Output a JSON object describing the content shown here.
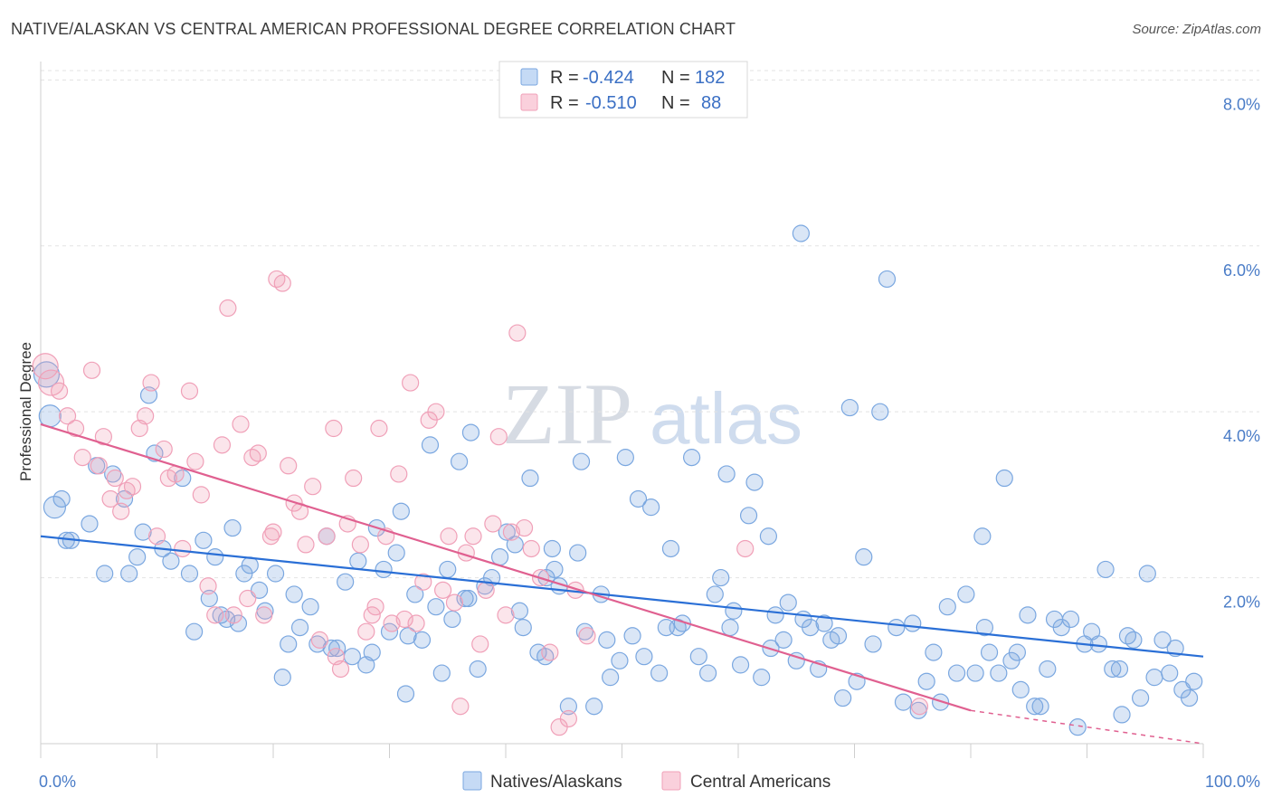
{
  "header": {
    "title": "NATIVE/ALASKAN VS CENTRAL AMERICAN PROFESSIONAL DEGREE CORRELATION CHART",
    "source": "Source: ZipAtlas.com"
  },
  "watermark": {
    "zip": "ZIP",
    "atlas": "atlas"
  },
  "legend": {
    "rows": [
      {
        "r_label": "R =",
        "r_value": "-0.424",
        "n_label": "N =",
        "n_value": "182",
        "color": "#7aa7e0"
      },
      {
        "r_label": "R =",
        "r_value": "-0.510",
        "n_label": "N =",
        "n_value": "88",
        "color": "#f0a0b8"
      }
    ]
  },
  "bottom_legend": {
    "items": [
      {
        "label": "Natives/Alaskans",
        "color": "#7aa7e0"
      },
      {
        "label": "Central Americans",
        "color": "#f0a0b8"
      }
    ]
  },
  "chart_data": {
    "type": "scatter",
    "ylabel": "Professional Degree",
    "x_tick_labels": {
      "left": "0.0%",
      "right": "100.0%"
    },
    "y_tick_labels": [
      "2.0%",
      "4.0%",
      "6.0%",
      "8.0%"
    ],
    "y_ticks": [
      2,
      4,
      6,
      8
    ],
    "xlim": [
      0,
      100
    ],
    "ylim": [
      0,
      8.2
    ],
    "grid": "horizontal dashed",
    "colors": {
      "blue": "#7aa7e0",
      "blue_line": "#2a6fd6",
      "pink": "#f0a0b8",
      "pink_line": "#e06090"
    },
    "trendlines": [
      {
        "series": "Natives/Alaskans",
        "x": [
          0,
          100
        ],
        "y": [
          2.5,
          1.05
        ]
      },
      {
        "series": "Central Americans",
        "x": [
          0,
          80
        ],
        "y": [
          3.85,
          0.4
        ],
        "dashed_extension_to": [
          100,
          0.0
        ]
      }
    ],
    "series": [
      {
        "name": "Natives/Alaskans",
        "color": "#7aa7e0",
        "points": [
          [
            0.5,
            4.45
          ],
          [
            0.8,
            3.95
          ],
          [
            1.2,
            2.85
          ],
          [
            1.8,
            2.95
          ],
          [
            2.2,
            2.45
          ],
          [
            2.6,
            2.45
          ],
          [
            4.2,
            2.65
          ],
          [
            4.8,
            3.35
          ],
          [
            6.2,
            3.25
          ],
          [
            5.5,
            2.05
          ],
          [
            7.2,
            2.95
          ],
          [
            7.6,
            2.05
          ],
          [
            8.3,
            2.25
          ],
          [
            8.8,
            2.55
          ],
          [
            9.3,
            4.2
          ],
          [
            9.8,
            3.5
          ],
          [
            10.5,
            2.35
          ],
          [
            11.2,
            2.2
          ],
          [
            12.2,
            3.2
          ],
          [
            12.8,
            2.05
          ],
          [
            13.2,
            1.35
          ],
          [
            14.0,
            2.45
          ],
          [
            14.5,
            1.75
          ],
          [
            15.0,
            2.25
          ],
          [
            15.5,
            1.55
          ],
          [
            16.0,
            1.5
          ],
          [
            16.5,
            2.6
          ],
          [
            17.0,
            1.45
          ],
          [
            17.5,
            2.05
          ],
          [
            18.0,
            2.15
          ],
          [
            18.8,
            1.85
          ],
          [
            19.3,
            1.6
          ],
          [
            20.2,
            2.05
          ],
          [
            20.8,
            0.8
          ],
          [
            21.3,
            1.2
          ],
          [
            21.8,
            1.8
          ],
          [
            22.3,
            1.4
          ],
          [
            23.2,
            1.65
          ],
          [
            23.8,
            1.2
          ],
          [
            24.6,
            2.5
          ],
          [
            25.0,
            1.15
          ],
          [
            25.5,
            1.15
          ],
          [
            26.2,
            1.95
          ],
          [
            26.8,
            1.05
          ],
          [
            27.3,
            2.2
          ],
          [
            28.0,
            0.95
          ],
          [
            28.5,
            1.1
          ],
          [
            28.9,
            2.6
          ],
          [
            29.5,
            2.1
          ],
          [
            30.0,
            1.35
          ],
          [
            30.6,
            2.3
          ],
          [
            31.0,
            2.8
          ],
          [
            31.6,
            1.3
          ],
          [
            32.2,
            1.8
          ],
          [
            32.8,
            1.25
          ],
          [
            33.5,
            3.6
          ],
          [
            34.0,
            1.65
          ],
          [
            34.5,
            0.85
          ],
          [
            35.0,
            2.1
          ],
          [
            35.4,
            1.5
          ],
          [
            36.0,
            3.4
          ],
          [
            36.5,
            1.75
          ],
          [
            37.0,
            3.75
          ],
          [
            37.6,
            0.9
          ],
          [
            38.2,
            1.9
          ],
          [
            38.8,
            2.0
          ],
          [
            39.5,
            2.25
          ],
          [
            40.1,
            2.55
          ],
          [
            40.8,
            2.4
          ],
          [
            41.5,
            1.4
          ],
          [
            42.1,
            3.2
          ],
          [
            42.8,
            1.1
          ],
          [
            43.5,
            2.0
          ],
          [
            44.0,
            2.35
          ],
          [
            44.6,
            1.9
          ],
          [
            45.4,
            0.45
          ],
          [
            46.2,
            2.3
          ],
          [
            46.8,
            1.35
          ],
          [
            47.6,
            0.45
          ],
          [
            48.2,
            1.8
          ],
          [
            49.0,
            0.8
          ],
          [
            49.8,
            1.0
          ],
          [
            50.3,
            3.45
          ],
          [
            50.9,
            1.3
          ],
          [
            51.4,
            2.95
          ],
          [
            51.9,
            1.05
          ],
          [
            52.5,
            2.85
          ],
          [
            53.2,
            0.85
          ],
          [
            53.8,
            1.4
          ],
          [
            54.2,
            2.35
          ],
          [
            54.8,
            1.4
          ],
          [
            55.2,
            1.45
          ],
          [
            56.0,
            3.45
          ],
          [
            56.6,
            1.05
          ],
          [
            57.4,
            0.85
          ],
          [
            58.0,
            1.8
          ],
          [
            58.5,
            2.0
          ],
          [
            59.0,
            3.25
          ],
          [
            59.6,
            1.6
          ],
          [
            60.2,
            0.95
          ],
          [
            60.9,
            2.75
          ],
          [
            61.4,
            3.15
          ],
          [
            62.0,
            0.8
          ],
          [
            62.6,
            2.5
          ],
          [
            63.2,
            1.55
          ],
          [
            63.9,
            1.25
          ],
          [
            64.3,
            1.7
          ],
          [
            65.0,
            1.0
          ],
          [
            65.6,
            1.5
          ],
          [
            66.2,
            1.4
          ],
          [
            66.9,
            0.9
          ],
          [
            67.4,
            1.45
          ],
          [
            68.0,
            1.25
          ],
          [
            68.6,
            1.3
          ],
          [
            69.0,
            0.55
          ],
          [
            69.6,
            4.05
          ],
          [
            70.2,
            0.75
          ],
          [
            70.8,
            2.25
          ],
          [
            71.6,
            1.2
          ],
          [
            72.2,
            4.0
          ],
          [
            72.8,
            5.6
          ],
          [
            73.6,
            1.4
          ],
          [
            74.2,
            0.5
          ],
          [
            75.0,
            1.45
          ],
          [
            75.5,
            0.4
          ],
          [
            76.2,
            0.75
          ],
          [
            76.8,
            1.1
          ],
          [
            77.4,
            0.5
          ],
          [
            78.0,
            1.65
          ],
          [
            78.8,
            0.85
          ],
          [
            79.6,
            1.8
          ],
          [
            80.4,
            0.85
          ],
          [
            81.0,
            2.5
          ],
          [
            81.6,
            1.1
          ],
          [
            82.4,
            0.85
          ],
          [
            82.9,
            3.2
          ],
          [
            83.5,
            1.0
          ],
          [
            84.3,
            0.65
          ],
          [
            84.9,
            1.55
          ],
          [
            85.5,
            0.45
          ],
          [
            86.0,
            0.45
          ],
          [
            86.6,
            0.9
          ],
          [
            87.2,
            1.5
          ],
          [
            87.8,
            1.4
          ],
          [
            88.6,
            1.5
          ],
          [
            89.2,
            0.2
          ],
          [
            89.8,
            1.2
          ],
          [
            90.4,
            1.35
          ],
          [
            91.0,
            1.2
          ],
          [
            91.6,
            2.1
          ],
          [
            92.2,
            0.9
          ],
          [
            92.8,
            0.9
          ],
          [
            93.5,
            1.3
          ],
          [
            94.0,
            1.25
          ],
          [
            94.6,
            0.55
          ],
          [
            95.2,
            2.05
          ],
          [
            95.8,
            0.8
          ],
          [
            96.5,
            1.25
          ],
          [
            97.1,
            0.85
          ],
          [
            97.6,
            1.15
          ],
          [
            98.2,
            0.65
          ],
          [
            98.8,
            0.55
          ],
          [
            99.2,
            0.75
          ],
          [
            65.4,
            6.15
          ],
          [
            84.0,
            1.1
          ],
          [
            44.2,
            2.1
          ],
          [
            41.2,
            1.6
          ],
          [
            36.8,
            1.75
          ],
          [
            46.5,
            3.4
          ],
          [
            48.7,
            1.25
          ],
          [
            93.0,
            0.35
          ],
          [
            31.4,
            0.6
          ],
          [
            43.4,
            1.05
          ],
          [
            59.3,
            1.4
          ],
          [
            62.8,
            1.15
          ],
          [
            81.2,
            1.4
          ]
        ]
      },
      {
        "name": "Central Americans",
        "color": "#f0a0b8",
        "points": [
          [
            0.4,
            4.55
          ],
          [
            0.9,
            4.35
          ],
          [
            1.6,
            4.25
          ],
          [
            2.3,
            3.95
          ],
          [
            3.0,
            3.8
          ],
          [
            3.6,
            3.45
          ],
          [
            4.4,
            4.5
          ],
          [
            5.0,
            3.35
          ],
          [
            5.4,
            3.7
          ],
          [
            6.0,
            2.95
          ],
          [
            6.4,
            3.2
          ],
          [
            6.9,
            2.8
          ],
          [
            7.4,
            3.05
          ],
          [
            7.9,
            3.1
          ],
          [
            8.5,
            3.8
          ],
          [
            9.0,
            3.95
          ],
          [
            9.5,
            4.35
          ],
          [
            10.0,
            2.5
          ],
          [
            10.6,
            3.55
          ],
          [
            11.0,
            3.2
          ],
          [
            11.6,
            3.25
          ],
          [
            12.2,
            2.35
          ],
          [
            12.8,
            4.25
          ],
          [
            13.3,
            3.4
          ],
          [
            13.8,
            3.0
          ],
          [
            14.4,
            1.9
          ],
          [
            15.0,
            1.55
          ],
          [
            15.6,
            3.6
          ],
          [
            16.1,
            5.25
          ],
          [
            16.6,
            1.55
          ],
          [
            17.2,
            3.85
          ],
          [
            17.8,
            1.75
          ],
          [
            18.2,
            3.45
          ],
          [
            18.7,
            3.5
          ],
          [
            19.2,
            1.55
          ],
          [
            19.8,
            2.5
          ],
          [
            20.3,
            5.6
          ],
          [
            20.8,
            5.55
          ],
          [
            21.3,
            3.35
          ],
          [
            21.8,
            2.9
          ],
          [
            22.3,
            2.8
          ],
          [
            22.8,
            2.4
          ],
          [
            23.4,
            3.1
          ],
          [
            24.0,
            1.25
          ],
          [
            24.6,
            2.5
          ],
          [
            25.2,
            3.8
          ],
          [
            25.8,
            0.9
          ],
          [
            26.4,
            2.65
          ],
          [
            26.9,
            3.2
          ],
          [
            27.5,
            2.4
          ],
          [
            28.0,
            1.35
          ],
          [
            28.5,
            1.55
          ],
          [
            29.1,
            3.8
          ],
          [
            29.7,
            2.5
          ],
          [
            30.2,
            1.45
          ],
          [
            30.8,
            3.25
          ],
          [
            31.3,
            1.5
          ],
          [
            31.8,
            4.35
          ],
          [
            32.3,
            1.45
          ],
          [
            32.9,
            1.95
          ],
          [
            33.4,
            3.9
          ],
          [
            34.0,
            4.0
          ],
          [
            34.6,
            1.85
          ],
          [
            35.1,
            2.5
          ],
          [
            35.6,
            1.7
          ],
          [
            36.1,
            0.45
          ],
          [
            36.6,
            2.3
          ],
          [
            37.2,
            2.5
          ],
          [
            37.8,
            1.2
          ],
          [
            38.3,
            1.85
          ],
          [
            38.9,
            2.65
          ],
          [
            39.4,
            3.7
          ],
          [
            40.0,
            1.55
          ],
          [
            40.5,
            2.55
          ],
          [
            41.0,
            4.95
          ],
          [
            41.6,
            2.6
          ],
          [
            42.2,
            2.35
          ],
          [
            43.0,
            2.0
          ],
          [
            43.8,
            1.1
          ],
          [
            44.6,
            0.2
          ],
          [
            45.4,
            0.3
          ],
          [
            46.0,
            1.85
          ],
          [
            47.0,
            1.3
          ],
          [
            20.0,
            2.55
          ],
          [
            25.4,
            1.05
          ],
          [
            28.8,
            1.65
          ],
          [
            60.6,
            2.35
          ],
          [
            75.6,
            0.45
          ]
        ]
      }
    ]
  }
}
